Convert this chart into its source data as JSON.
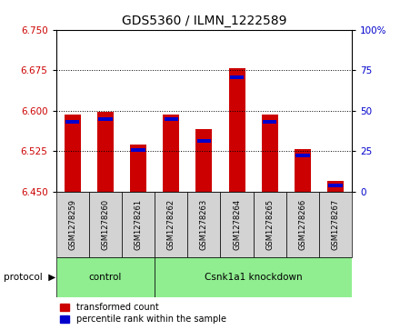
{
  "title": "GDS5360 / ILMN_1222589",
  "categories": [
    "GSM1278259",
    "GSM1278260",
    "GSM1278261",
    "GSM1278262",
    "GSM1278263",
    "GSM1278264",
    "GSM1278265",
    "GSM1278266",
    "GSM1278267"
  ],
  "red_values": [
    6.592,
    6.598,
    6.537,
    6.592,
    6.565,
    6.678,
    6.592,
    6.528,
    6.47
  ],
  "blue_values": [
    6.576,
    6.58,
    6.524,
    6.58,
    6.54,
    6.658,
    6.575,
    6.513,
    6.458
  ],
  "bar_bottom": 6.45,
  "ylim": [
    6.45,
    6.75
  ],
  "yticks_left": [
    6.45,
    6.525,
    6.6,
    6.675,
    6.75
  ],
  "yticks_right": [
    0,
    25,
    50,
    75,
    100
  ],
  "y2lim": [
    0,
    100
  ],
  "protocol_color": "#90EE90",
  "bar_color_red": "#CC0000",
  "bar_color_blue": "#0000CC",
  "tick_label_color_left": "#CC0000",
  "tick_label_color_right": "#0000CC",
  "background_color": "#ffffff",
  "sample_box_color": "#d3d3d3",
  "bar_width": 0.5,
  "ctrl_count": 3,
  "kd_count": 6
}
